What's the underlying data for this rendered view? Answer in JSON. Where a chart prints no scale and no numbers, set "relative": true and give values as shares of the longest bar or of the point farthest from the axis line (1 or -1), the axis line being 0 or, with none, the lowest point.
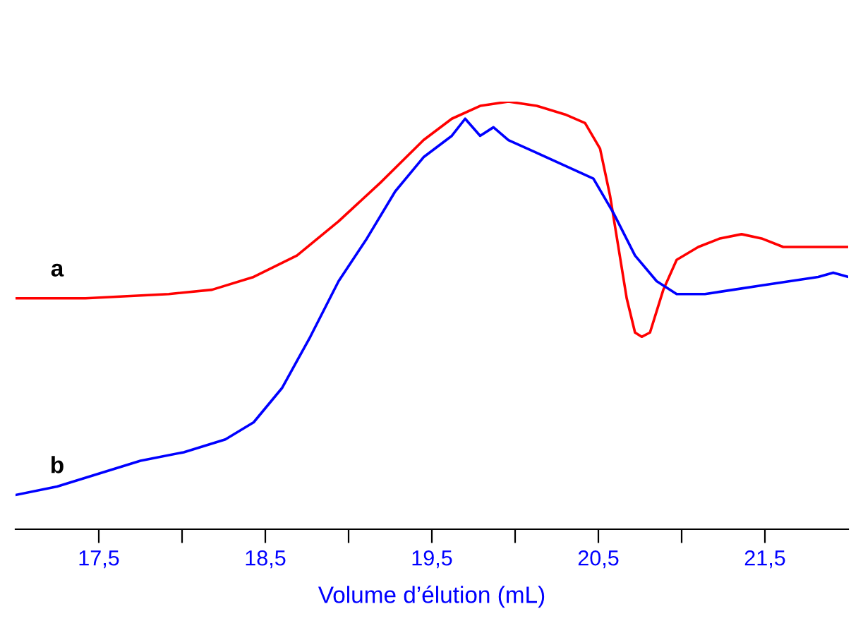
{
  "chart_data": {
    "type": "line",
    "relative": true,
    "xlabel": "Volume d’élution (mL)",
    "xlim": [
      17,
      22
    ],
    "xticks": [
      {
        "value": 17.5,
        "label": "17,5"
      },
      {
        "value": 18,
        "label": null
      },
      {
        "value": 18.5,
        "label": "18,5"
      },
      {
        "value": 19,
        "label": null
      },
      {
        "value": 19.5,
        "label": "19,5"
      },
      {
        "value": 20,
        "label": null
      },
      {
        "value": 20.5,
        "label": "20,5"
      },
      {
        "value": 21,
        "label": null
      },
      {
        "value": 21.5,
        "label": "21,5"
      }
    ],
    "tick_labels": "x",
    "grid": false,
    "legend": false,
    "marker": "none",
    "line_style": "solid",
    "series": [
      {
        "name": "a",
        "color": "#ff0000",
        "x": [
          17.0,
          17.42,
          17.92,
          18.18,
          18.43,
          18.69,
          18.94,
          19.19,
          19.45,
          19.62,
          19.79,
          19.96,
          20.13,
          20.3,
          20.42,
          20.51,
          20.57,
          20.62,
          20.67,
          20.72,
          20.76,
          20.81,
          20.89,
          20.97,
          21.1,
          21.23,
          21.36,
          21.48,
          21.61,
          21.74,
          22.0
        ],
        "values": [
          0.54,
          0.54,
          0.55,
          0.56,
          0.59,
          0.64,
          0.72,
          0.81,
          0.91,
          0.96,
          0.99,
          1.0,
          0.99,
          0.97,
          0.95,
          0.89,
          0.78,
          0.66,
          0.54,
          0.46,
          0.45,
          0.46,
          0.56,
          0.63,
          0.66,
          0.68,
          0.69,
          0.68,
          0.66,
          0.66,
          0.66
        ]
      },
      {
        "name": "b",
        "color": "#0000ff",
        "x": [
          17.0,
          17.25,
          17.5,
          17.75,
          18.01,
          18.26,
          18.43,
          18.6,
          18.77,
          18.94,
          19.11,
          19.28,
          19.45,
          19.62,
          19.7,
          19.79,
          19.87,
          19.96,
          20.13,
          20.3,
          20.47,
          20.59,
          20.72,
          20.85,
          20.97,
          21.14,
          21.31,
          21.48,
          21.65,
          21.82,
          21.91,
          22.0
        ],
        "values": [
          0.08,
          0.1,
          0.13,
          0.16,
          0.18,
          0.21,
          0.25,
          0.33,
          0.45,
          0.58,
          0.68,
          0.79,
          0.87,
          0.92,
          0.96,
          0.92,
          0.94,
          0.91,
          0.88,
          0.85,
          0.82,
          0.74,
          0.64,
          0.58,
          0.55,
          0.55,
          0.56,
          0.57,
          0.58,
          0.59,
          0.6,
          0.59
        ]
      }
    ]
  }
}
